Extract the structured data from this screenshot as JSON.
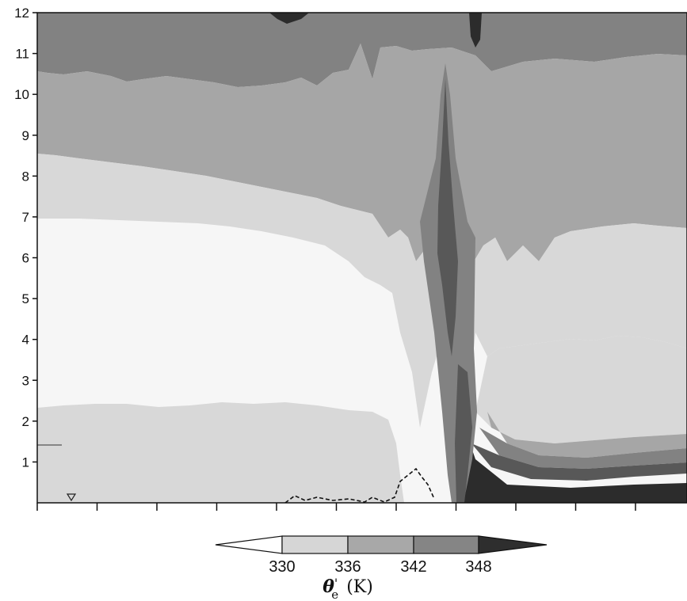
{
  "chart_data": {
    "type": "heatmap",
    "title": "",
    "xlabel": "",
    "ylabel": "",
    "ylim": [
      0,
      12
    ],
    "y_ticks": [
      {
        "value": 1,
        "label": "1"
      },
      {
        "value": 2,
        "label": "2"
      },
      {
        "value": 3,
        "label": "3"
      },
      {
        "value": 4,
        "label": "4"
      },
      {
        "value": 5,
        "label": "5"
      },
      {
        "value": 6,
        "label": "6"
      },
      {
        "value": 7,
        "label": "7"
      },
      {
        "value": 8,
        "label": "8"
      },
      {
        "value": 9,
        "label": "9"
      },
      {
        "value": 10,
        "label": "10"
      },
      {
        "value": 11,
        "label": "11"
      },
      {
        "value": 12,
        "label": "12"
      }
    ],
    "x_tick_count": 11,
    "colorbar": {
      "variable_label": "θe' (K)",
      "variable_symbol": "θ",
      "variable_subscript": "e",
      "variable_prime": "'",
      "variable_units": "(K)",
      "levels": [
        330,
        336,
        342,
        348
      ],
      "level_labels": [
        "330",
        "336",
        "342",
        "348"
      ],
      "fills": [
        "#f4f4f4",
        "#d6d6d6",
        "#a8a8a8",
        "#858585",
        "#565656",
        "#2e2e2e"
      ]
    },
    "shading": {
      "lt330": "#f6f6f6",
      "330_336": "#d8d8d8",
      "336_342": "#a6a6a6",
      "342_348": "#828282",
      "gt348": "#585858",
      "max": "#2c2c2c"
    }
  }
}
